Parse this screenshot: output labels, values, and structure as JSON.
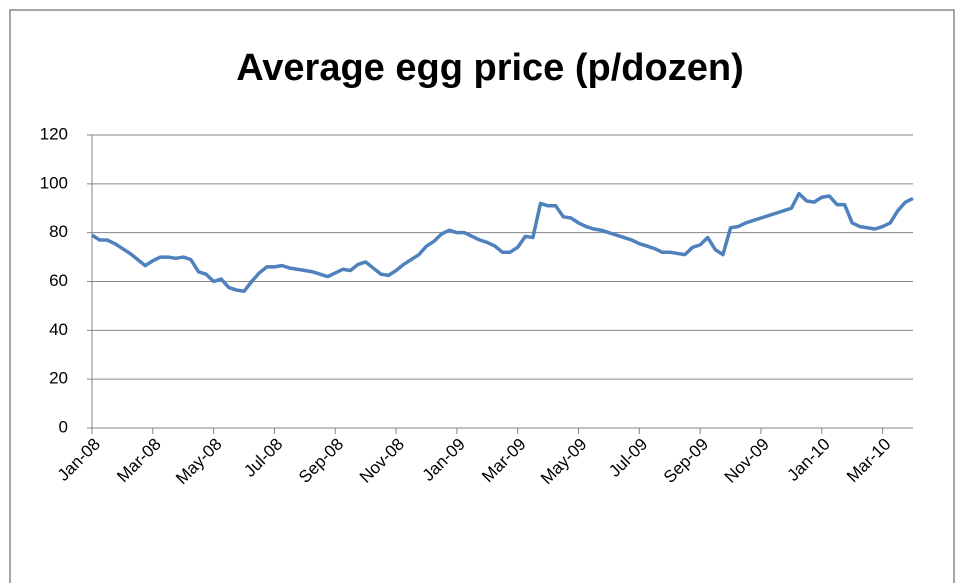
{
  "chart_data": {
    "type": "line",
    "title": "Average egg price (p/dozen)",
    "categories": [
      "Jan-08",
      null,
      null,
      null,
      null,
      null,
      null,
      null,
      "Mar-08",
      null,
      null,
      null,
      null,
      null,
      null,
      null,
      "May-08",
      null,
      null,
      null,
      null,
      null,
      null,
      null,
      "Jul-08",
      null,
      null,
      null,
      null,
      null,
      null,
      null,
      "Sep-08",
      null,
      null,
      null,
      null,
      null,
      null,
      null,
      "Nov-08",
      null,
      null,
      null,
      null,
      null,
      null,
      null,
      "Jan-09",
      null,
      null,
      null,
      null,
      null,
      null,
      null,
      "Mar-09",
      null,
      null,
      null,
      null,
      null,
      null,
      null,
      "May-09",
      null,
      null,
      null,
      null,
      null,
      null,
      null,
      "Jul-09",
      null,
      null,
      null,
      null,
      null,
      null,
      null,
      "Sep-09",
      null,
      null,
      null,
      null,
      null,
      null,
      null,
      "Nov-09",
      null,
      null,
      null,
      null,
      null,
      null,
      null,
      "Jan-10",
      null,
      null,
      null,
      null,
      null,
      null,
      null,
      "Mar-10",
      null,
      null,
      null,
      null
    ],
    "values": [
      79,
      77,
      77,
      75.5,
      73.5,
      71.5,
      69,
      66.5,
      68.5,
      70,
      70,
      69.5,
      70,
      69,
      64,
      63,
      60,
      61,
      57.5,
      56.5,
      56,
      60,
      63.5,
      66,
      66,
      66.5,
      65.5,
      65,
      64.5,
      64,
      63,
      62,
      63.5,
      65,
      64.5,
      67,
      68,
      65.5,
      63,
      62.5,
      64.5,
      67,
      69,
      71,
      74.5,
      76.5,
      79.5,
      81,
      80,
      80,
      78.5,
      77,
      76,
      74.5,
      72,
      72,
      74,
      78.5,
      78,
      92,
      91,
      91,
      86.5,
      86,
      84,
      82.5,
      81.5,
      81,
      80,
      79,
      78,
      77,
      75.5,
      74.5,
      73.5,
      72,
      72,
      71.5,
      71,
      74,
      75,
      78,
      73,
      71,
      82,
      82.5,
      84,
      85,
      86,
      87,
      88,
      89,
      90,
      96,
      93,
      92.5,
      94.5,
      95,
      91.5,
      91.5,
      84,
      82.5,
      82,
      81.5,
      82.5,
      84,
      89,
      92.5,
      94
    ],
    "color": "#4f81bd",
    "ylim": [
      0,
      120
    ],
    "yticks": [
      0,
      20,
      40,
      60,
      80,
      100,
      120
    ],
    "grid": true
  }
}
